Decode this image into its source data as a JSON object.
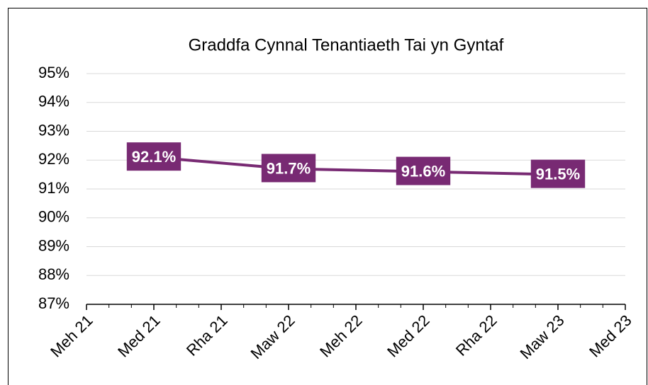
{
  "chart_data": {
    "type": "line",
    "title": "Graddfa Cynnal Tenantiaeth Tai yn Gyntaf",
    "xticks": [
      "Meh 21",
      "Med 21",
      "Rha 21",
      "Maw 22",
      "Meh 22",
      "Med 22",
      "Rha 22",
      "Maw 23",
      "Med 23"
    ],
    "x": [
      "Med 21",
      "Maw 22",
      "Med 22",
      "Maw 23"
    ],
    "values": [
      92.1,
      91.7,
      91.6,
      91.5
    ],
    "value_labels": [
      "92.1%",
      "91.7%",
      "91.6%",
      "91.5%"
    ],
    "color": "#782a73",
    "ylim": [
      87,
      95
    ],
    "yticks": [
      {
        "value": 87,
        "label": "87%"
      },
      {
        "value": 88,
        "label": "88%"
      },
      {
        "value": 89,
        "label": "89%"
      },
      {
        "value": 90,
        "label": "90%"
      },
      {
        "value": 91,
        "label": "91%"
      },
      {
        "value": 92,
        "label": "92%"
      },
      {
        "value": 93,
        "label": "93%"
      },
      {
        "value": 94,
        "label": "94%"
      },
      {
        "value": 95,
        "label": "95%"
      }
    ],
    "grid": true
  }
}
